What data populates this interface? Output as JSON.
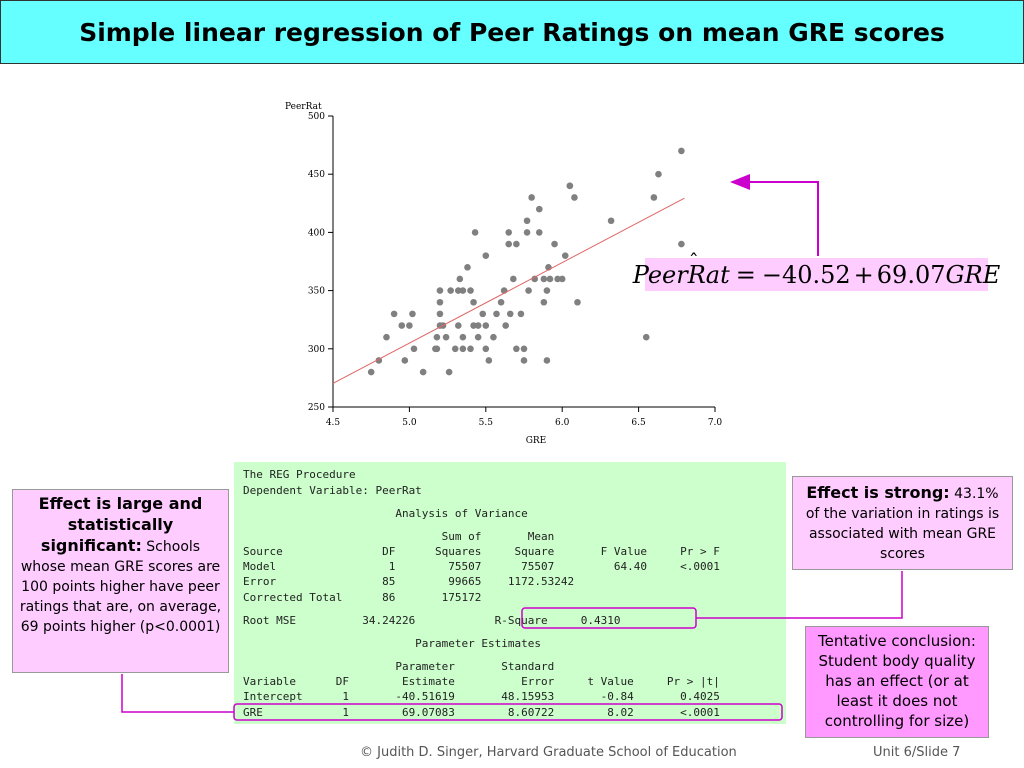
{
  "title": "Simple linear regression of Peer Ratings on mean GRE scores",
  "colors": {
    "title_bg": "#66ffff",
    "callout_bg": "#ffccff",
    "output_bg": "#ccffcc",
    "arrow": "#cc00cc",
    "fit_line": "#e06666",
    "points": "#808080"
  },
  "chart_data": {
    "type": "scatter",
    "ylabel": "PeerRat",
    "xlabel": "GRE",
    "xlim": [
      4.5,
      7.0
    ],
    "ylim": [
      250,
      500
    ],
    "xticks": [
      "4.5",
      "5.0",
      "5.5",
      "6.0",
      "6.5",
      "7.0"
    ],
    "yticks": [
      "250",
      "300",
      "350",
      "400",
      "450",
      "500"
    ],
    "points": [
      [
        4.75,
        280
      ],
      [
        4.8,
        290
      ],
      [
        4.85,
        310
      ],
      [
        4.9,
        330
      ],
      [
        4.95,
        320
      ],
      [
        4.97,
        290
      ],
      [
        5.0,
        320
      ],
      [
        5.02,
        330
      ],
      [
        5.03,
        300
      ],
      [
        5.09,
        280
      ],
      [
        5.17,
        300
      ],
      [
        5.18,
        300
      ],
      [
        5.18,
        310
      ],
      [
        5.2,
        320
      ],
      [
        5.2,
        340
      ],
      [
        5.2,
        350
      ],
      [
        5.2,
        330
      ],
      [
        5.22,
        320
      ],
      [
        5.24,
        310
      ],
      [
        5.26,
        280
      ],
      [
        5.27,
        350
      ],
      [
        5.3,
        300
      ],
      [
        5.32,
        320
      ],
      [
        5.32,
        350
      ],
      [
        5.33,
        360
      ],
      [
        5.35,
        350
      ],
      [
        5.35,
        310
      ],
      [
        5.35,
        300
      ],
      [
        5.38,
        370
      ],
      [
        5.4,
        300
      ],
      [
        5.4,
        350
      ],
      [
        5.42,
        320
      ],
      [
        5.42,
        340
      ],
      [
        5.43,
        400
      ],
      [
        5.45,
        320
      ],
      [
        5.45,
        310
      ],
      [
        5.48,
        330
      ],
      [
        5.5,
        380
      ],
      [
        5.5,
        320
      ],
      [
        5.5,
        300
      ],
      [
        5.52,
        290
      ],
      [
        5.55,
        310
      ],
      [
        5.57,
        330
      ],
      [
        5.6,
        340
      ],
      [
        5.62,
        350
      ],
      [
        5.63,
        320
      ],
      [
        5.65,
        400
      ],
      [
        5.65,
        390
      ],
      [
        5.66,
        330
      ],
      [
        5.68,
        360
      ],
      [
        5.7,
        300
      ],
      [
        5.7,
        390
      ],
      [
        5.73,
        330
      ],
      [
        5.75,
        300
      ],
      [
        5.75,
        290
      ],
      [
        5.77,
        400
      ],
      [
        5.77,
        410
      ],
      [
        5.78,
        350
      ],
      [
        5.8,
        430
      ],
      [
        5.82,
        360
      ],
      [
        5.85,
        420
      ],
      [
        5.85,
        400
      ],
      [
        5.88,
        340
      ],
      [
        5.88,
        360
      ],
      [
        5.9,
        290
      ],
      [
        5.9,
        350
      ],
      [
        5.91,
        370
      ],
      [
        5.92,
        360
      ],
      [
        5.95,
        390
      ],
      [
        5.97,
        360
      ],
      [
        6.0,
        360
      ],
      [
        6.02,
        380
      ],
      [
        6.05,
        440
      ],
      [
        6.05,
        440
      ],
      [
        6.08,
        430
      ],
      [
        6.1,
        340
      ],
      [
        6.32,
        410
      ],
      [
        6.55,
        310
      ],
      [
        6.6,
        430
      ],
      [
        6.63,
        450
      ],
      [
        6.78,
        470
      ],
      [
        6.78,
        390
      ]
    ],
    "fit_line": {
      "x": [
        4.5,
        6.8
      ],
      "y": [
        270.3,
        429.4
      ]
    }
  },
  "equation": {
    "lhs_letters": "Peer",
    "lhs_hat_letter": "R",
    "lhs_rest": "at",
    "equals": "=",
    "minus": "−",
    "intercept": "40.52",
    "plus": "+",
    "slope": "69.07",
    "var": "GRE"
  },
  "sas_output": [
    "The REG Procedure",
    "Dependent Variable: PeerRat",
    "                       Analysis of Variance",
    "                              Sum of       Mean",
    "Source               DF      Squares     Square       F Value     Pr > F",
    "Model                 1        75507      75507         64.40     <.0001",
    "Error                85        99665    1172.53242",
    "Corrected Total      86       175172",
    "Root MSE          34.24226            R-Square     0.4310",
    "                          Parameter Estimates",
    "                       Parameter       Standard",
    "Variable      DF        Estimate          Error     t Value     Pr > |t|",
    "Intercept      1       -40.51619       48.15953       -0.84       0.4025",
    "GRE            1        69.07083        8.60722        8.02       <.0001"
  ],
  "callouts": {
    "left": {
      "head": "Effect is large and statistically significant:",
      "body": " Schools whose mean GRE scores are 100 points higher have peer ratings that are, on average, 69 points higher (p<0.0001)"
    },
    "right_top": {
      "head": "Effect is strong:",
      "body": " 43.1% of the variation in ratings is associated with mean GRE scores"
    },
    "right_bottom": {
      "body": "Tentative conclusion: Student body quality has an effect (or at least it does not controlling for size)"
    }
  },
  "footer": {
    "credit": "© Judith D. Singer, Harvard Graduate School of Education",
    "slide": "Unit 6/Slide 7"
  }
}
